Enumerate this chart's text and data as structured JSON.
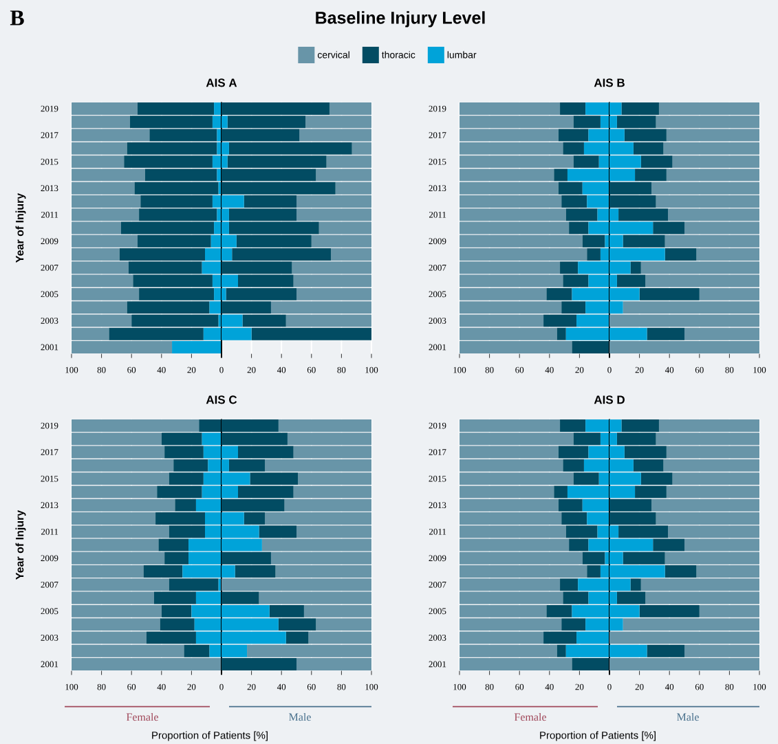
{
  "chart_data": [
    {
      "type": "bar",
      "orientation": "horizontal",
      "stacked": true,
      "title": "Baseline Injury Level",
      "subtitle": "AIS A",
      "ylabel": "Year of Injury",
      "annotations": [
        "B"
      ],
      "legend": "top",
      "grid": "x",
      "categories": [
        "2019",
        null,
        "2017",
        null,
        "2015",
        null,
        "2013",
        null,
        "2011",
        null,
        "2009",
        null,
        "2007",
        null,
        "2005",
        null,
        "2003",
        null,
        "2001"
      ],
      "xlim": [
        -100,
        100
      ],
      "xticks": [
        {
          "value": -100,
          "label": "100"
        },
        {
          "value": -80,
          "label": "80"
        },
        {
          "value": -60,
          "label": "60"
        },
        {
          "value": -40,
          "label": "40"
        },
        {
          "value": -20,
          "label": "20"
        },
        0,
        20,
        40,
        60,
        80,
        100
      ],
      "ref_lines": [
        {
          "axis": "x",
          "value": 0,
          "color": "#000000"
        }
      ],
      "series": [
        {
          "name": "lumbar",
          "color": "#00a3d9",
          "values": [
            -5,
            -6,
            -3,
            -3,
            -6,
            -3,
            -2,
            -6,
            -3,
            -5,
            -7,
            -11,
            -13,
            -6,
            -5,
            -8,
            -2,
            -12,
            -33
          ]
        },
        {
          "name": "thoracic",
          "color": "#024c63",
          "values": [
            -51,
            -55,
            -45,
            -60,
            -59,
            -48,
            -56,
            -48,
            -52,
            -62,
            -49,
            -57,
            -49,
            -53,
            -50,
            -55,
            -58,
            -63,
            0
          ]
        },
        {
          "name": "cervical",
          "color": "#6895a8",
          "values": [
            -44,
            -39,
            -52,
            -37,
            -35,
            -49,
            -42,
            -46,
            -45,
            -33,
            -44,
            -32,
            -38,
            -41,
            -45,
            -37,
            -40,
            -25,
            -67
          ]
        },
        {
          "color": "#00a3d9",
          "values": [
            0,
            4,
            0,
            5,
            4,
            0,
            0,
            15,
            5,
            5,
            10,
            7,
            0,
            11,
            3,
            0,
            14,
            20,
            null
          ]
        },
        {
          "color": "#024c63",
          "values": [
            72,
            52,
            52,
            82,
            66,
            63,
            76,
            35,
            45,
            60,
            50,
            66,
            47,
            37,
            47,
            33,
            29,
            80,
            null
          ]
        },
        {
          "color": "#6895a8",
          "values": [
            28,
            44,
            48,
            13,
            30,
            37,
            24,
            50,
            50,
            35,
            40,
            27,
            53,
            52,
            50,
            67,
            57,
            0,
            null
          ]
        }
      ]
    },
    {
      "type": "bar",
      "orientation": "horizontal",
      "stacked": true,
      "title": "AIS B",
      "grid": "x",
      "categories": [
        "2019",
        null,
        "2017",
        null,
        "2015",
        null,
        "2013",
        null,
        "2011",
        null,
        "2009",
        null,
        "2007",
        null,
        "2005",
        null,
        "2003",
        null,
        "2001"
      ],
      "xlim": [
        -100,
        100
      ],
      "xticks": [
        {
          "value": -100,
          "label": "100"
        },
        {
          "value": -80,
          "label": "80"
        },
        {
          "value": -60,
          "label": "60"
        },
        {
          "value": -40,
          "label": "40"
        },
        {
          "value": -20,
          "label": "20"
        },
        0,
        20,
        40,
        60,
        80,
        100
      ],
      "ref_lines": [
        {
          "axis": "x",
          "value": 0,
          "color": "#000000"
        }
      ],
      "series": [
        {
          "color": "#00a3d9",
          "values": [
            -16,
            -6,
            -14,
            -17,
            -7,
            -28,
            -18,
            -15,
            -8,
            -14,
            -3,
            -6,
            -21,
            -14,
            -25,
            -16,
            -22,
            -29,
            0
          ]
        },
        {
          "color": "#024c63",
          "values": [
            -17,
            -18,
            -20,
            -14,
            -17,
            -9,
            -16,
            -17,
            -21,
            -13,
            -15,
            -9,
            -12,
            -17,
            -17,
            -16,
            -22,
            -6,
            -25
          ]
        },
        {
          "color": "#6895a8",
          "values": [
            -67,
            -76,
            -66,
            -69,
            -76,
            -63,
            -66,
            -68,
            -71,
            -73,
            -82,
            -85,
            -67,
            -69,
            -58,
            -68,
            -56,
            -65,
            -75
          ]
        },
        {
          "color": "#00a3d9",
          "values": [
            8,
            5,
            10,
            16,
            21,
            17,
            0,
            0,
            6,
            29,
            9,
            37,
            14,
            5,
            20,
            9,
            0,
            25,
            0
          ]
        },
        {
          "color": "#024c63",
          "values": [
            25,
            26,
            28,
            20,
            21,
            21,
            28,
            31,
            33,
            21,
            28,
            21,
            7,
            19,
            40,
            0,
            0,
            25,
            0
          ]
        },
        {
          "color": "#6895a8",
          "values": [
            67,
            69,
            62,
            64,
            58,
            62,
            72,
            69,
            61,
            50,
            63,
            42,
            79,
            76,
            40,
            91,
            100,
            50,
            100
          ]
        }
      ]
    },
    {
      "type": "bar",
      "orientation": "horizontal",
      "stacked": true,
      "title": "AIS C",
      "ylabel": "Year of Injury",
      "xlabel": "Proportion of Patients [%]",
      "annotations": [
        "Female",
        "Male"
      ],
      "grid": "x",
      "categories": [
        "2019",
        null,
        "2017",
        null,
        "2015",
        null,
        "2013",
        null,
        "2011",
        null,
        "2009",
        null,
        "2007",
        null,
        "2005",
        null,
        "2003",
        null,
        "2001"
      ],
      "xlim": [
        -100,
        100
      ],
      "xticks": [
        {
          "value": -100,
          "label": "100"
        },
        {
          "value": -80,
          "label": "80"
        },
        {
          "value": -60,
          "label": "60"
        },
        {
          "value": -40,
          "label": "40"
        },
        {
          "value": -20,
          "label": "20"
        },
        0,
        20,
        40,
        60,
        80,
        100
      ],
      "ref_lines": [
        {
          "axis": "x",
          "value": 0,
          "color": "#000000"
        }
      ],
      "series": [
        {
          "color": "#00a3d9",
          "values": [
            0,
            -13,
            -12,
            -9,
            -12,
            -13,
            -17,
            -11,
            -11,
            -22,
            -22,
            -26,
            -2,
            -17,
            -20,
            -18,
            -17,
            -8,
            0
          ]
        },
        {
          "color": "#024c63",
          "values": [
            -15,
            -27,
            -26,
            -23,
            -23,
            -30,
            -14,
            -33,
            -24,
            -20,
            -16,
            -26,
            -33,
            -28,
            -20,
            -23,
            -33,
            -17,
            0
          ]
        },
        {
          "color": "#6895a8",
          "values": [
            -85,
            -60,
            -62,
            -68,
            -65,
            -57,
            -69,
            -56,
            -65,
            -58,
            -62,
            -48,
            -65,
            -55,
            -60,
            -59,
            -50,
            -75,
            -100
          ]
        },
        {
          "color": "#00a3d9",
          "values": [
            0,
            0,
            11,
            5,
            19,
            11,
            0,
            15,
            25,
            27,
            0,
            9,
            0,
            0,
            32,
            38,
            43,
            17,
            0
          ]
        },
        {
          "color": "#024c63",
          "values": [
            38,
            44,
            37,
            24,
            32,
            37,
            42,
            14,
            25,
            0,
            33,
            27,
            0,
            25,
            23,
            25,
            15,
            0,
            50
          ]
        },
        {
          "color": "#6895a8",
          "values": [
            62,
            56,
            52,
            71,
            49,
            52,
            58,
            71,
            50,
            73,
            67,
            64,
            100,
            75,
            45,
            37,
            42,
            83,
            50
          ]
        }
      ]
    },
    {
      "type": "bar",
      "orientation": "horizontal",
      "stacked": true,
      "title": "AIS D",
      "xlabel": "Proportion of Patients [%]",
      "annotations": [
        "Female",
        "Male"
      ],
      "grid": "x",
      "categories": [
        "2019",
        null,
        "2017",
        null,
        "2015",
        null,
        "2013",
        null,
        "2011",
        null,
        "2009",
        null,
        "2007",
        null,
        "2005",
        null,
        "2003",
        null,
        "2001"
      ],
      "xlim": [
        -100,
        100
      ],
      "xticks": [
        {
          "value": -100,
          "label": "100"
        },
        {
          "value": -80,
          "label": "80"
        },
        {
          "value": -60,
          "label": "60"
        },
        {
          "value": -40,
          "label": "40"
        },
        {
          "value": -20,
          "label": "20"
        },
        0,
        20,
        40,
        60,
        80,
        100
      ],
      "ref_lines": [
        {
          "axis": "x",
          "value": 0,
          "color": "#000000"
        }
      ],
      "series": [
        {
          "color": "#00a3d9",
          "values": [
            -16,
            -6,
            -14,
            -17,
            -7,
            -28,
            -18,
            -15,
            -8,
            -14,
            -3,
            -6,
            -21,
            -14,
            -25,
            -16,
            -22,
            -29,
            0
          ]
        },
        {
          "color": "#024c63",
          "values": [
            -17,
            -18,
            -20,
            -14,
            -17,
            -9,
            -16,
            -17,
            -21,
            -13,
            -15,
            -9,
            -12,
            -17,
            -17,
            -16,
            -22,
            -6,
            -25
          ]
        },
        {
          "color": "#6895a8",
          "values": [
            -67,
            -76,
            -66,
            -69,
            -76,
            -63,
            -66,
            -68,
            -71,
            -73,
            -82,
            -85,
            -67,
            -69,
            -58,
            -68,
            -56,
            -65,
            -75
          ]
        },
        {
          "color": "#00a3d9",
          "values": [
            8,
            5,
            10,
            16,
            21,
            17,
            0,
            0,
            6,
            29,
            9,
            37,
            14,
            5,
            20,
            9,
            0,
            25,
            0
          ]
        },
        {
          "color": "#024c63",
          "values": [
            25,
            26,
            28,
            20,
            21,
            21,
            28,
            31,
            33,
            21,
            28,
            21,
            7,
            19,
            40,
            0,
            0,
            25,
            0
          ]
        },
        {
          "color": "#6895a8",
          "values": [
            67,
            69,
            62,
            64,
            58,
            62,
            72,
            69,
            61,
            50,
            63,
            42,
            79,
            76,
            40,
            91,
            100,
            50,
            100
          ]
        }
      ]
    }
  ]
}
